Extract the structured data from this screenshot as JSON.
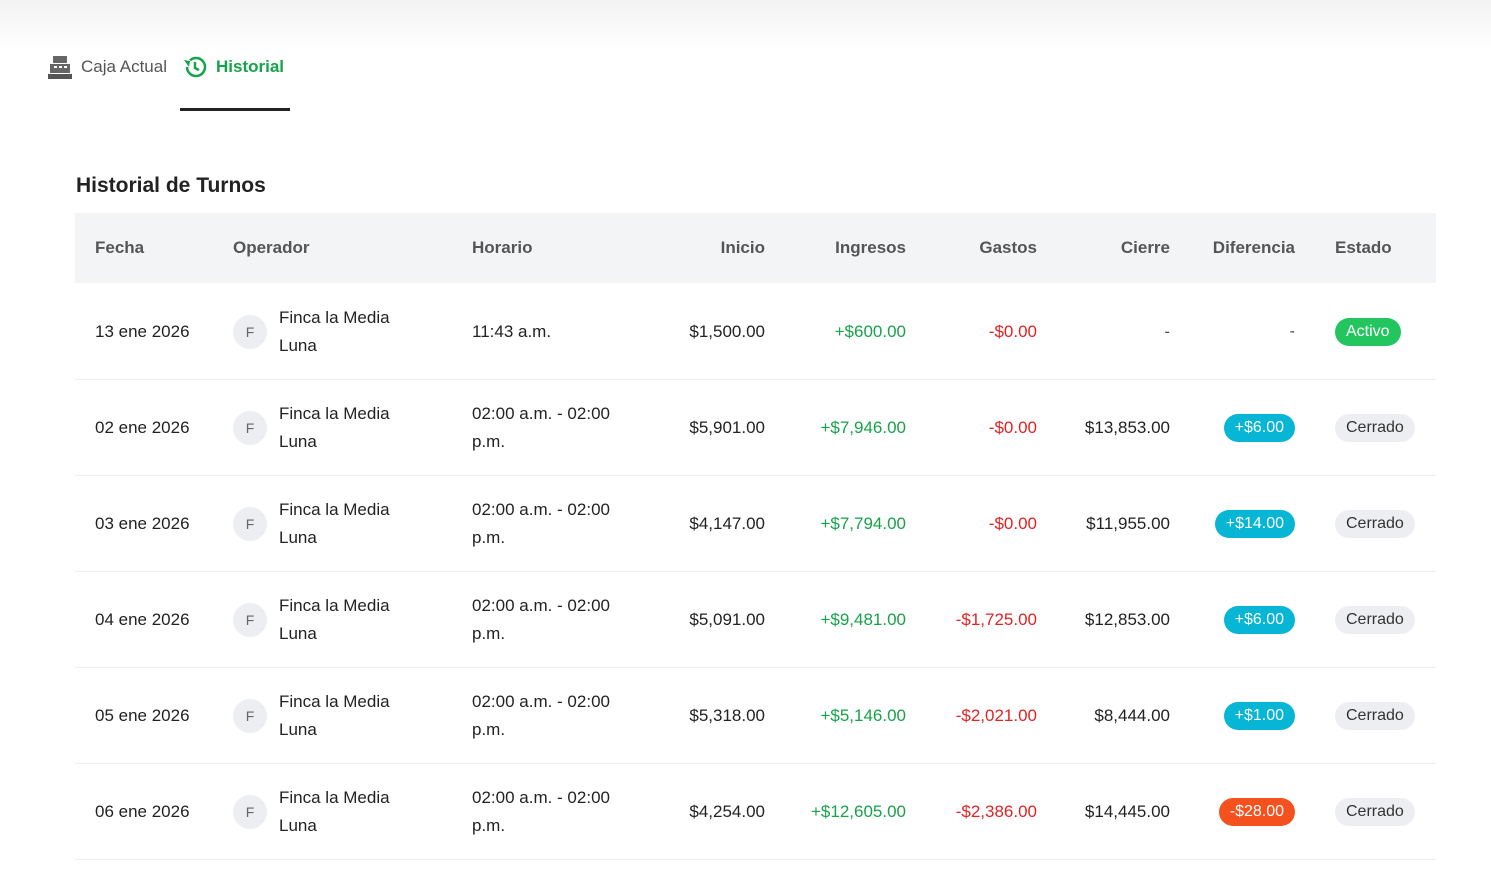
{
  "tabs": [
    "Caja Actual",
    "Historial"
  ],
  "section_title": "Historial de Turnos",
  "table": {
    "headers": [
      "Fecha",
      "Operador",
      "Horario",
      "Inicio",
      "Ingresos",
      "Gastos",
      "Cierre",
      "Diferencia",
      "Estado"
    ],
    "rows": [
      {
        "fecha": "13 ene 2026",
        "avatar": "F",
        "operador": "Finca la Media Luna",
        "horario": "11:43 a.m.",
        "inicio": "$1,500.00",
        "ingresos": "+$600.00",
        "gastos": "-$0.00",
        "cierre": "-",
        "diferencia": "-",
        "estado": "Activo"
      },
      {
        "fecha": "02 ene 2026",
        "avatar": "F",
        "operador": "Finca la Media Luna",
        "horario": "02:00 a.m. - 02:00 p.m.",
        "inicio": "$5,901.00",
        "ingresos": "+$7,946.00",
        "gastos": "-$0.00",
        "cierre": "$13,853.00",
        "diferencia": "+$6.00",
        "estado": "Cerrado"
      },
      {
        "fecha": "03 ene 2026",
        "avatar": "F",
        "operador": "Finca la Media Luna",
        "horario": "02:00 a.m. - 02:00 p.m.",
        "inicio": "$4,147.00",
        "ingresos": "+$7,794.00",
        "gastos": "-$0.00",
        "cierre": "$11,955.00",
        "diferencia": "+$14.00",
        "estado": "Cerrado"
      },
      {
        "fecha": "04 ene 2026",
        "avatar": "F",
        "operador": "Finca la Media Luna",
        "horario": "02:00 a.m. - 02:00 p.m.",
        "inicio": "$5,091.00",
        "ingresos": "+$9,481.00",
        "gastos": "-$1,725.00",
        "cierre": "$12,853.00",
        "diferencia": "+$6.00",
        "estado": "Cerrado"
      },
      {
        "fecha": "05 ene 2026",
        "avatar": "F",
        "operador": "Finca la Media Luna",
        "horario": "02:00 a.m. - 02:00 p.m.",
        "inicio": "$5,318.00",
        "ingresos": "+$5,146.00",
        "gastos": "-$2,021.00",
        "cierre": "$8,444.00",
        "diferencia": "+$1.00",
        "estado": "Cerrado"
      },
      {
        "fecha": "06 ene 2026",
        "avatar": "F",
        "operador": "Finca la Media Luna",
        "horario": "02:00 a.m. - 02:00 p.m.",
        "inicio": "$4,254.00",
        "ingresos": "+$12,605.00",
        "gastos": "-$2,386.00",
        "cierre": "$14,445.00",
        "diferencia": "-$28.00",
        "estado": "Cerrado"
      }
    ]
  }
}
